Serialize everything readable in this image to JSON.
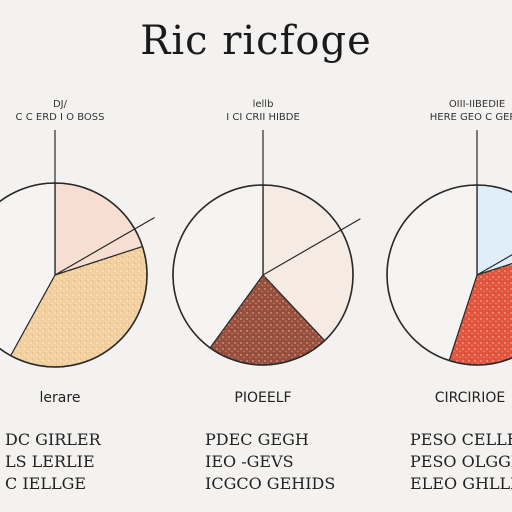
{
  "title": "Ric ricfoge",
  "chart_data": [
    {
      "type": "pie",
      "top_label": [
        "DJ/",
        "C C ERD I O BOSS"
      ],
      "slices": [
        {
          "label": "",
          "value": 20,
          "color": "#f6dfd2"
        },
        {
          "label": "",
          "value": 38,
          "color": "#f2cf9d"
        },
        {
          "label": "",
          "value": 42,
          "color": "#f6f4f3"
        }
      ],
      "bottom_label": "lerare",
      "text_rows": [
        "DC GIRLER",
        "LS LERLIE",
        "C IELLGE"
      ]
    },
    {
      "type": "pie",
      "top_label": [
        "lellb",
        "I CI CRII HIBDE"
      ],
      "slices": [
        {
          "label": "",
          "value": 38,
          "color": "#f6ebe3"
        },
        {
          "label": "",
          "value": 22,
          "color": "#9a4f3c"
        },
        {
          "label": "",
          "value": 40,
          "color": "#f6f4f3"
        }
      ],
      "bottom_label": "PIOEELF",
      "text_rows": [
        "PDEC GEGH",
        "IEO -GEVS",
        "ICGCO GEHIDS"
      ]
    },
    {
      "type": "pie",
      "top_label": [
        "OIII-IIBEDIE",
        "HERE GEO C GERO"
      ],
      "slices": [
        {
          "label": "",
          "value": 20,
          "color": "#dfeef8"
        },
        {
          "label": "",
          "value": 35,
          "color": "#e2553c"
        },
        {
          "label": "",
          "value": 45,
          "color": "#f6f4f3"
        }
      ],
      "bottom_label": "CIRCIRIOE",
      "text_rows": [
        "PESO CELLE",
        "PESO OLGGL",
        "ELEO GHLLE"
      ]
    }
  ]
}
